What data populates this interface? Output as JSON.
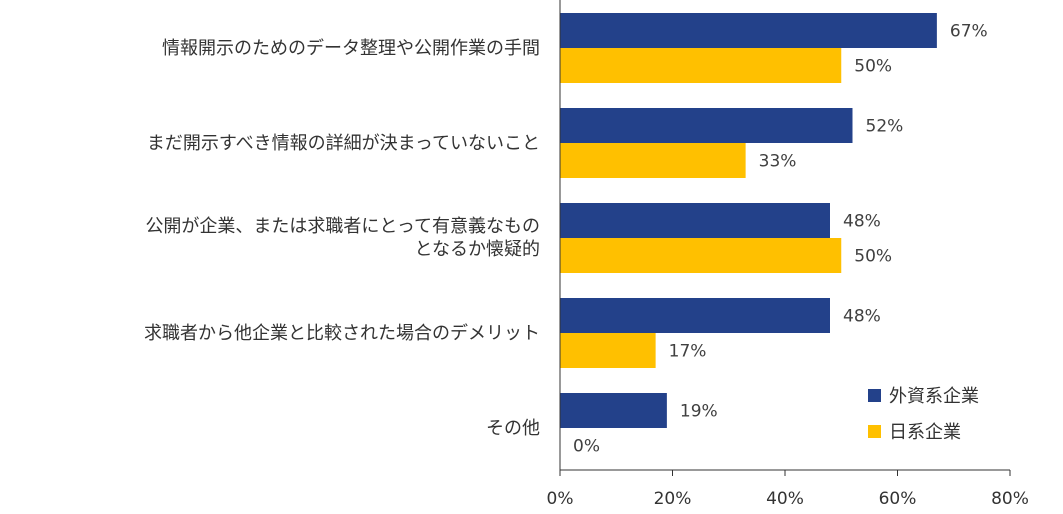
{
  "chart_data": {
    "type": "bar",
    "orientation": "horizontal",
    "categories": [
      "情報開示のためのデータ整理や公開作業の手間",
      "まだ開示すべき情報の詳細が決まっていないこと",
      "公開が企業、または求職者にとって有意義なもの\nとなるか懐疑的",
      "求職者から他企業と比較された場合のデメリット",
      "その他"
    ],
    "series": [
      {
        "name": "外資系企業",
        "values": [
          67,
          52,
          48,
          48,
          19
        ],
        "color": "#23418A"
      },
      {
        "name": "日系企業",
        "values": [
          50,
          33,
          50,
          17,
          0
        ],
        "color": "#FFC000"
      }
    ],
    "value_suffix": "%",
    "xlim": [
      0,
      80
    ],
    "xticks": [
      "0%",
      "20%",
      "40%",
      "60%",
      "80%"
    ],
    "grid": false,
    "legend_position": "bottom-right"
  }
}
